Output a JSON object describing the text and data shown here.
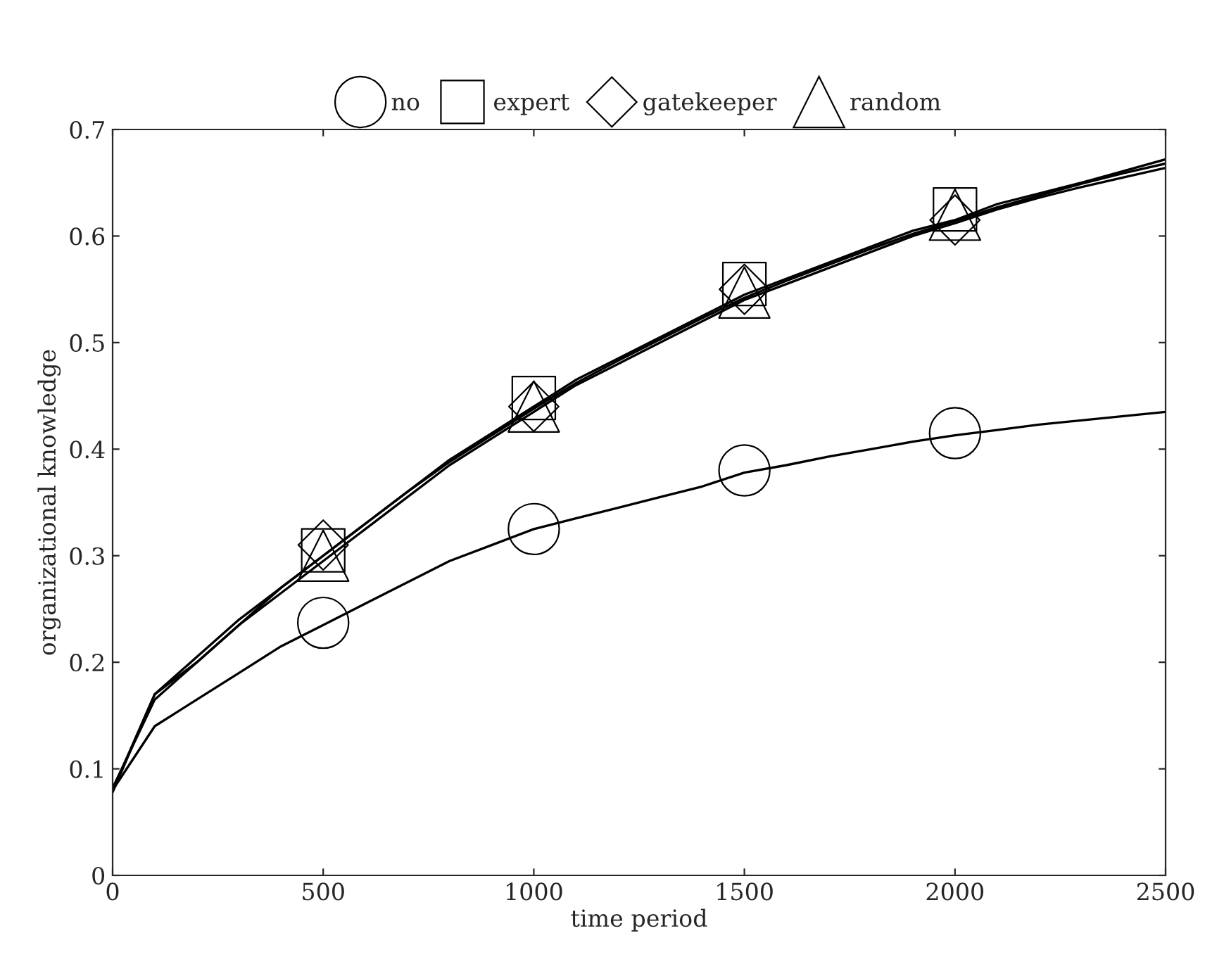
{
  "chart_data": {
    "type": "line",
    "xlabel": "time period",
    "ylabel": "organizational knowledge",
    "x": [
      0,
      100,
      200,
      300,
      400,
      500,
      600,
      700,
      800,
      900,
      1000,
      1100,
      1200,
      1300,
      1400,
      1500,
      1600,
      1700,
      1800,
      1900,
      2000,
      2100,
      2200,
      2300,
      2400,
      2500
    ],
    "series": [
      {
        "color": "#000000",
        "values": [
          0.08,
          0.14,
          0.165,
          0.19,
          0.215,
          0.235,
          0.255,
          0.275,
          0.295,
          0.31,
          0.325,
          0.335,
          0.345,
          0.355,
          0.365,
          0.378,
          0.385,
          0.393,
          0.4,
          0.407,
          0.413,
          0.418,
          0.423,
          0.427,
          0.431,
          0.435
        ]
      },
      {
        "color": "#000000",
        "values": [
          0.08,
          0.17,
          0.205,
          0.24,
          0.27,
          0.3,
          0.33,
          0.36,
          0.39,
          0.415,
          0.44,
          0.465,
          0.485,
          0.505,
          0.525,
          0.545,
          0.56,
          0.575,
          0.59,
          0.605,
          0.615,
          0.63,
          0.64,
          0.65,
          0.661,
          0.672
        ]
      },
      {
        "color": "#000000",
        "values": [
          0.082,
          0.165,
          0.2,
          0.235,
          0.265,
          0.295,
          0.325,
          0.355,
          0.385,
          0.41,
          0.435,
          0.46,
          0.48,
          0.5,
          0.52,
          0.54,
          0.555,
          0.57,
          0.585,
          0.6,
          0.612,
          0.625,
          0.636,
          0.646,
          0.655,
          0.664
        ]
      },
      {
        "color": "#000000",
        "values": [
          0.078,
          0.17,
          0.2,
          0.235,
          0.27,
          0.3,
          0.33,
          0.36,
          0.388,
          0.413,
          0.438,
          0.462,
          0.483,
          0.503,
          0.523,
          0.542,
          0.558,
          0.573,
          0.588,
          0.602,
          0.614,
          0.627,
          0.638,
          0.649,
          0.659,
          0.668
        ]
      },
      {
        "name": "no",
        "type": "scatter",
        "color": "#000000",
        "marker": "circle",
        "x": [
          500,
          1000,
          1500,
          2000
        ],
        "values": [
          0.237,
          0.325,
          0.38,
          0.415
        ]
      },
      {
        "name": "expert",
        "type": "scatter",
        "color": "#000000",
        "marker": "square",
        "x": [
          500,
          1000,
          1500,
          2000
        ],
        "values": [
          0.305,
          0.448,
          0.555,
          0.625
        ]
      },
      {
        "name": "gatekeeper",
        "type": "scatter",
        "color": "#000000",
        "marker": "diamond",
        "x": [
          500,
          1000,
          1500,
          2000
        ],
        "values": [
          0.31,
          0.44,
          0.55,
          0.615
        ]
      },
      {
        "name": "random",
        "type": "scatter",
        "color": "#000000",
        "marker": "triangle",
        "x": [
          500,
          1000,
          1500,
          2000
        ],
        "values": [
          0.3,
          0.44,
          0.547,
          0.62
        ]
      }
    ],
    "xlim": [
      0,
      2500
    ],
    "ylim": [
      0,
      0.7
    ],
    "xticks": [
      0,
      500,
      1000,
      1500,
      2000,
      2500
    ],
    "yticks": [
      0,
      0.1,
      0.2,
      0.3,
      0.4,
      0.5,
      0.6,
      0.7
    ],
    "legend": "top",
    "grid": false
  }
}
